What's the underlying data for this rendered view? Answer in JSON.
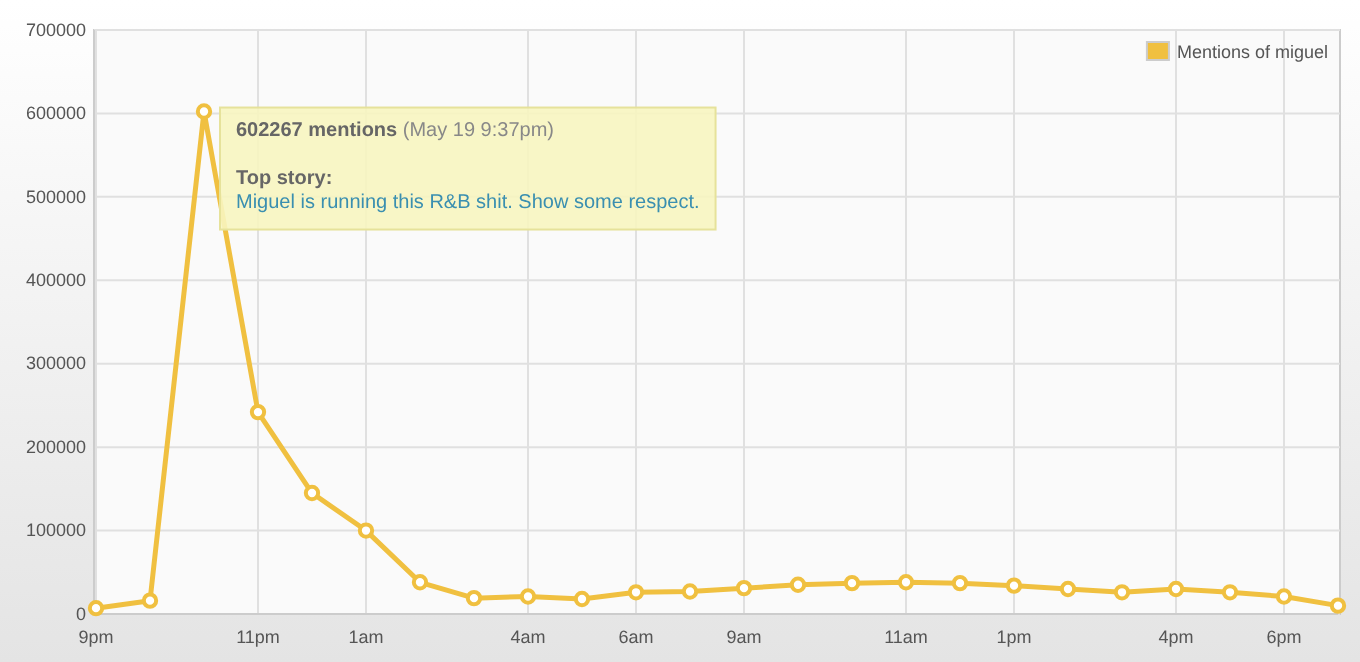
{
  "chart_data": {
    "type": "line",
    "categories": [
      "9pm",
      null,
      null,
      "11pm",
      null,
      "1am",
      null,
      null,
      "4am",
      null,
      "6am",
      null,
      "9am",
      null,
      null,
      "11am",
      null,
      "1pm",
      null,
      null,
      "4pm",
      null,
      "6pm",
      null
    ],
    "series": [
      {
        "name": "Mentions of miguel",
        "color": "#f0c040",
        "values": [
          7000,
          16000,
          602267,
          242000,
          145000,
          100000,
          38000,
          19000,
          21000,
          18000,
          26000,
          27000,
          31000,
          35000,
          37000,
          38000,
          37000,
          34000,
          30000,
          26000,
          30000,
          26000,
          21000,
          10000
        ]
      }
    ],
    "ylim": [
      0,
      700000
    ],
    "yticks": [
      0,
      100000,
      200000,
      300000,
      400000,
      500000,
      600000,
      700000
    ],
    "grid": true,
    "legend": "top right",
    "marker": "circle",
    "line_style": "solid",
    "annotations": [
      "602267 mentions",
      "(May 19 9:37pm)",
      "Top story:",
      "Miguel is running this R&B shit. Show some respect."
    ]
  }
}
